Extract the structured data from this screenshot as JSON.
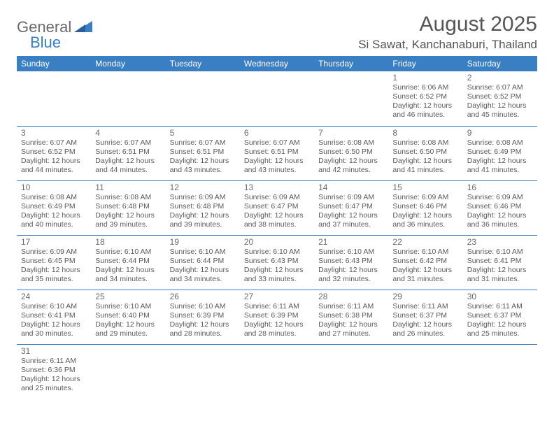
{
  "brand": {
    "general": "General",
    "blue": "Blue"
  },
  "title": "August 2025",
  "location": "Si Sawat, Kanchanaburi, Thailand",
  "colors": {
    "header_bg": "#3a7fc4",
    "header_fg": "#ffffff",
    "rule": "#3a7fc4",
    "text": "#555555"
  },
  "day_headers": [
    "Sunday",
    "Monday",
    "Tuesday",
    "Wednesday",
    "Thursday",
    "Friday",
    "Saturday"
  ],
  "weeks": [
    [
      null,
      null,
      null,
      null,
      null,
      {
        "d": "1",
        "sr": "6:06 AM",
        "ss": "6:52 PM",
        "dl": "12 hours and 46 minutes."
      },
      {
        "d": "2",
        "sr": "6:07 AM",
        "ss": "6:52 PM",
        "dl": "12 hours and 45 minutes."
      }
    ],
    [
      {
        "d": "3",
        "sr": "6:07 AM",
        "ss": "6:52 PM",
        "dl": "12 hours and 44 minutes."
      },
      {
        "d": "4",
        "sr": "6:07 AM",
        "ss": "6:51 PM",
        "dl": "12 hours and 44 minutes."
      },
      {
        "d": "5",
        "sr": "6:07 AM",
        "ss": "6:51 PM",
        "dl": "12 hours and 43 minutes."
      },
      {
        "d": "6",
        "sr": "6:07 AM",
        "ss": "6:51 PM",
        "dl": "12 hours and 43 minutes."
      },
      {
        "d": "7",
        "sr": "6:08 AM",
        "ss": "6:50 PM",
        "dl": "12 hours and 42 minutes."
      },
      {
        "d": "8",
        "sr": "6:08 AM",
        "ss": "6:50 PM",
        "dl": "12 hours and 41 minutes."
      },
      {
        "d": "9",
        "sr": "6:08 AM",
        "ss": "6:49 PM",
        "dl": "12 hours and 41 minutes."
      }
    ],
    [
      {
        "d": "10",
        "sr": "6:08 AM",
        "ss": "6:49 PM",
        "dl": "12 hours and 40 minutes."
      },
      {
        "d": "11",
        "sr": "6:08 AM",
        "ss": "6:48 PM",
        "dl": "12 hours and 39 minutes."
      },
      {
        "d": "12",
        "sr": "6:09 AM",
        "ss": "6:48 PM",
        "dl": "12 hours and 39 minutes."
      },
      {
        "d": "13",
        "sr": "6:09 AM",
        "ss": "6:47 PM",
        "dl": "12 hours and 38 minutes."
      },
      {
        "d": "14",
        "sr": "6:09 AM",
        "ss": "6:47 PM",
        "dl": "12 hours and 37 minutes."
      },
      {
        "d": "15",
        "sr": "6:09 AM",
        "ss": "6:46 PM",
        "dl": "12 hours and 36 minutes."
      },
      {
        "d": "16",
        "sr": "6:09 AM",
        "ss": "6:46 PM",
        "dl": "12 hours and 36 minutes."
      }
    ],
    [
      {
        "d": "17",
        "sr": "6:09 AM",
        "ss": "6:45 PM",
        "dl": "12 hours and 35 minutes."
      },
      {
        "d": "18",
        "sr": "6:10 AM",
        "ss": "6:44 PM",
        "dl": "12 hours and 34 minutes."
      },
      {
        "d": "19",
        "sr": "6:10 AM",
        "ss": "6:44 PM",
        "dl": "12 hours and 34 minutes."
      },
      {
        "d": "20",
        "sr": "6:10 AM",
        "ss": "6:43 PM",
        "dl": "12 hours and 33 minutes."
      },
      {
        "d": "21",
        "sr": "6:10 AM",
        "ss": "6:43 PM",
        "dl": "12 hours and 32 minutes."
      },
      {
        "d": "22",
        "sr": "6:10 AM",
        "ss": "6:42 PM",
        "dl": "12 hours and 31 minutes."
      },
      {
        "d": "23",
        "sr": "6:10 AM",
        "ss": "6:41 PM",
        "dl": "12 hours and 31 minutes."
      }
    ],
    [
      {
        "d": "24",
        "sr": "6:10 AM",
        "ss": "6:41 PM",
        "dl": "12 hours and 30 minutes."
      },
      {
        "d": "25",
        "sr": "6:10 AM",
        "ss": "6:40 PM",
        "dl": "12 hours and 29 minutes."
      },
      {
        "d": "26",
        "sr": "6:10 AM",
        "ss": "6:39 PM",
        "dl": "12 hours and 28 minutes."
      },
      {
        "d": "27",
        "sr": "6:11 AM",
        "ss": "6:39 PM",
        "dl": "12 hours and 28 minutes."
      },
      {
        "d": "28",
        "sr": "6:11 AM",
        "ss": "6:38 PM",
        "dl": "12 hours and 27 minutes."
      },
      {
        "d": "29",
        "sr": "6:11 AM",
        "ss": "6:37 PM",
        "dl": "12 hours and 26 minutes."
      },
      {
        "d": "30",
        "sr": "6:11 AM",
        "ss": "6:37 PM",
        "dl": "12 hours and 25 minutes."
      }
    ],
    [
      {
        "d": "31",
        "sr": "6:11 AM",
        "ss": "6:36 PM",
        "dl": "12 hours and 25 minutes."
      },
      null,
      null,
      null,
      null,
      null,
      null
    ]
  ],
  "labels": {
    "sunrise": "Sunrise:",
    "sunset": "Sunset:",
    "daylight": "Daylight:"
  }
}
